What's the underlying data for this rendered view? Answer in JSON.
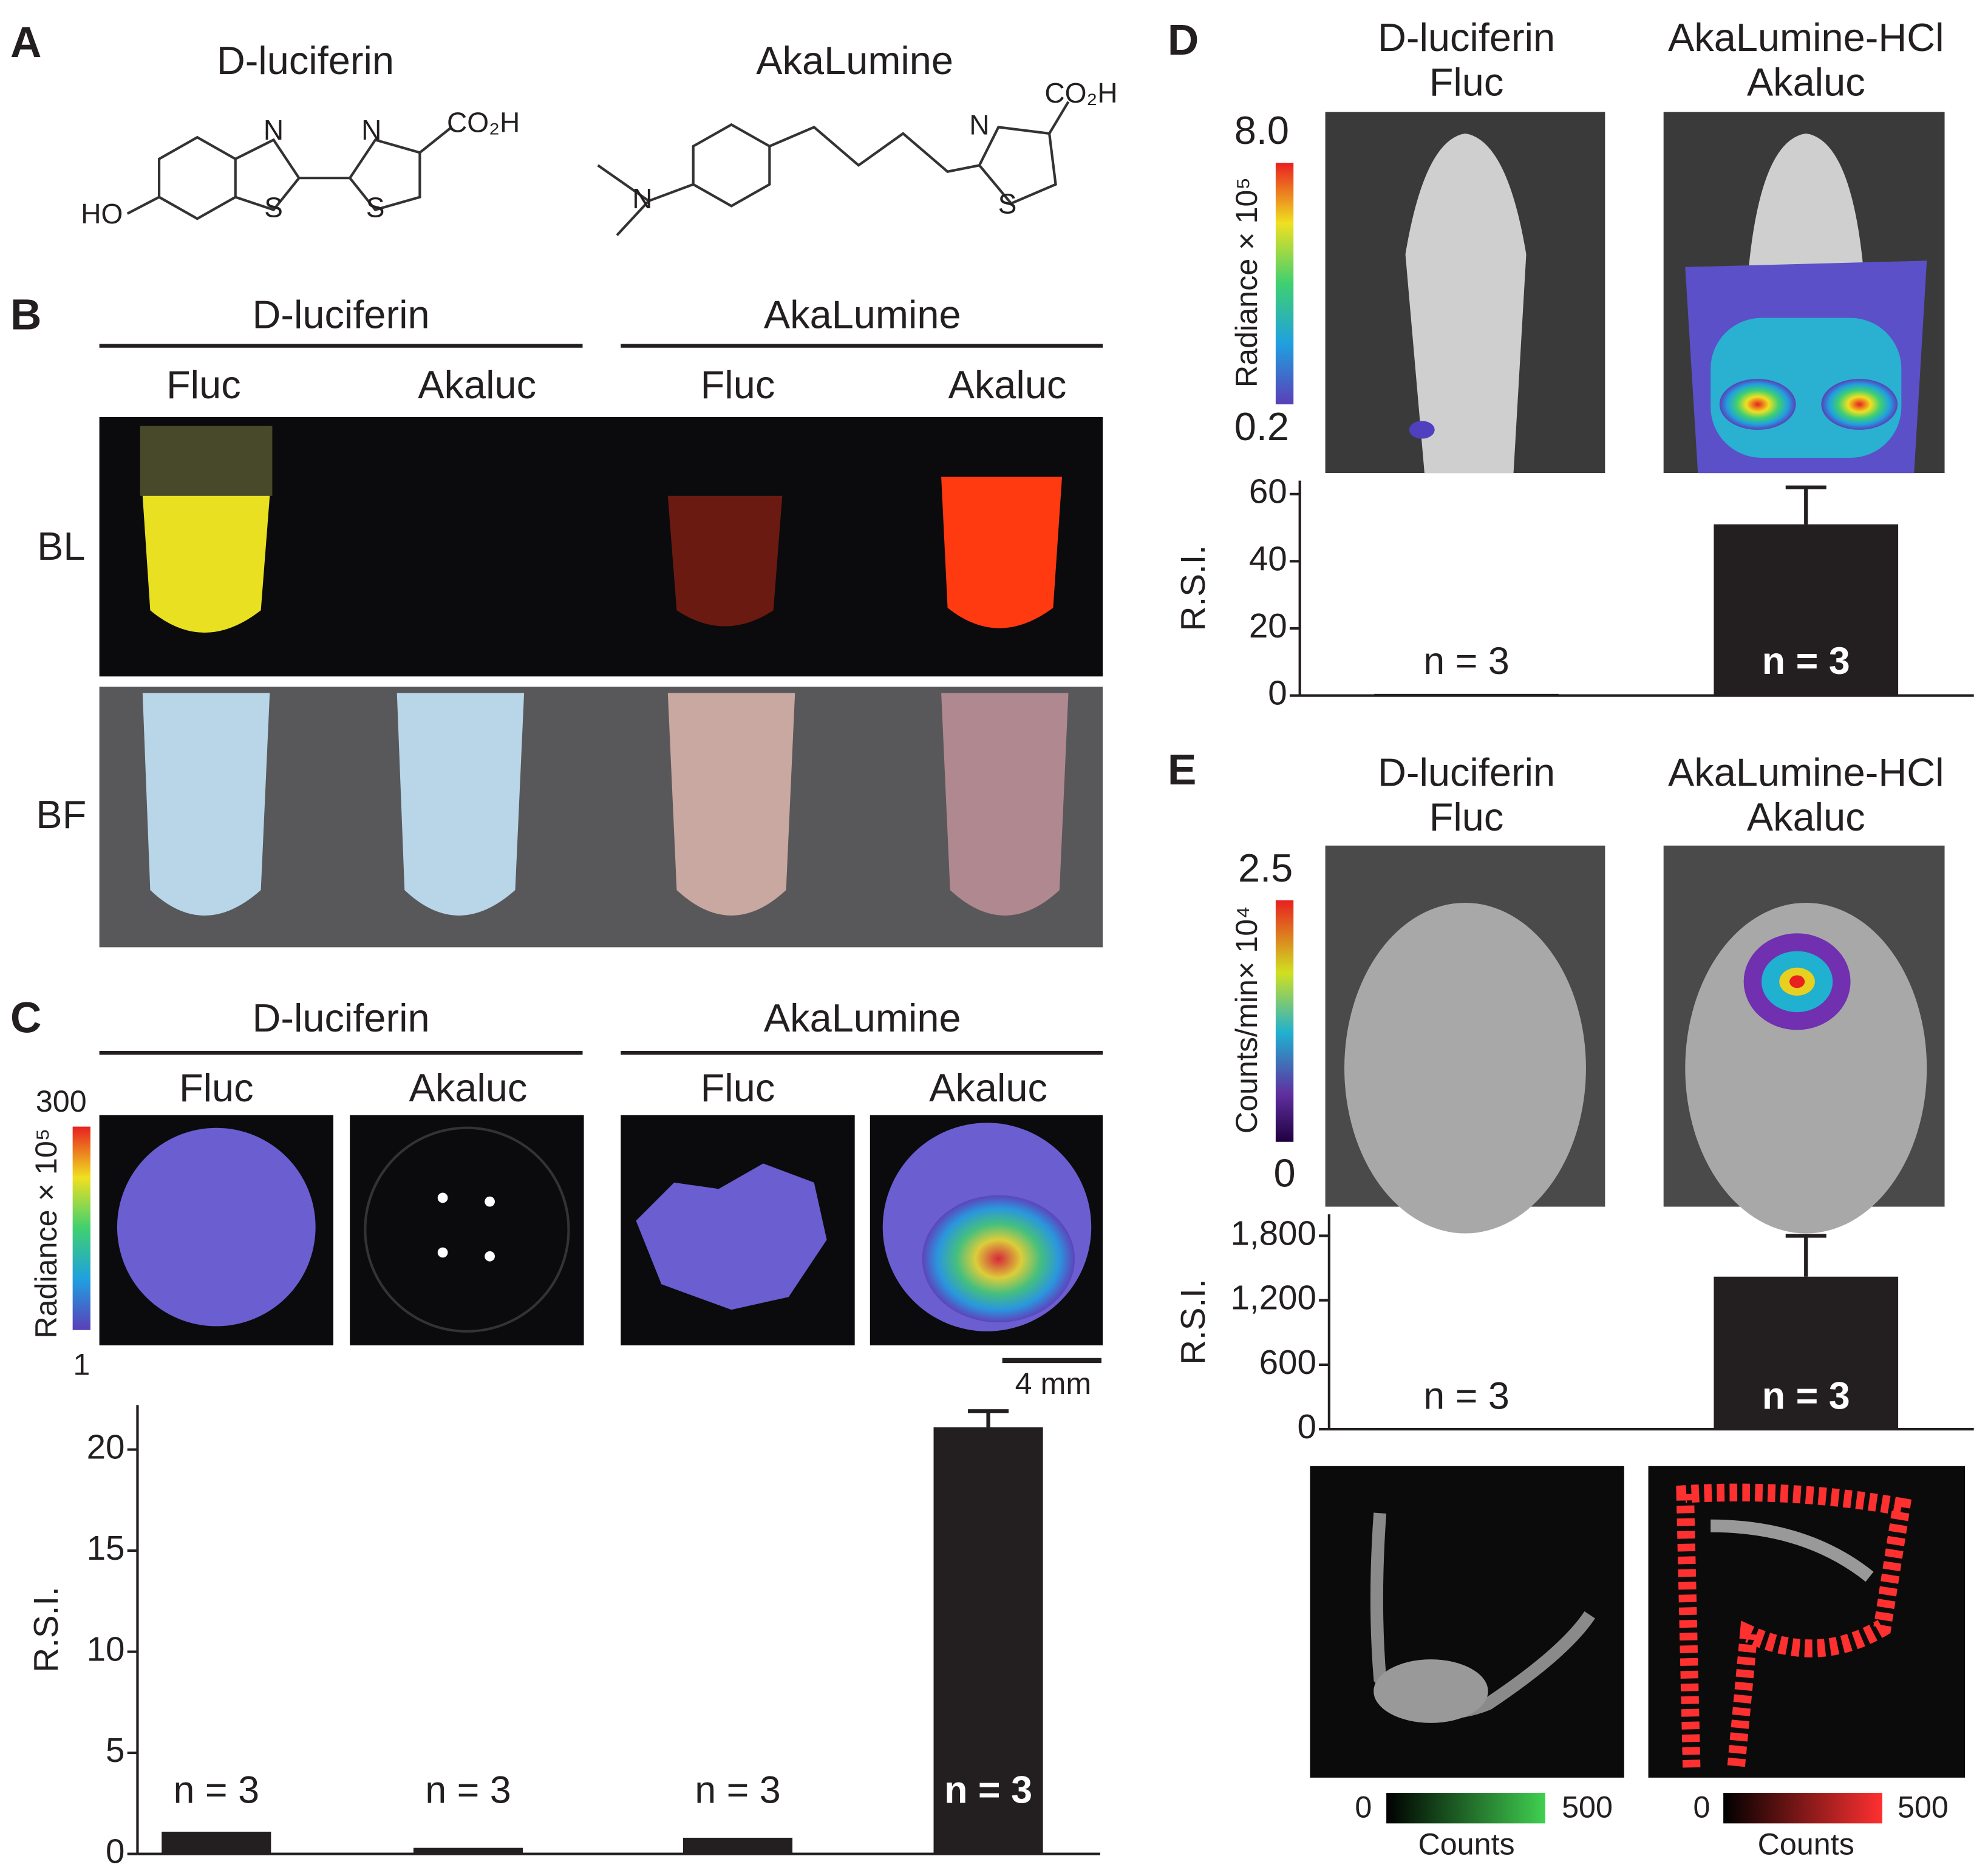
{
  "panel_labels": [
    "A",
    "B",
    "C",
    "D",
    "E"
  ],
  "panel_a": {
    "compounds": [
      "D-luciferin",
      "AkaLumine"
    ],
    "atoms_1": [
      "N",
      "N",
      "CO₂H",
      "HO",
      "S",
      "S"
    ],
    "atoms_2": [
      "N",
      "N",
      "CO₂H",
      "S"
    ]
  },
  "panel_b": {
    "groups": [
      "D-luciferin",
      "AkaLumine"
    ],
    "columns": [
      "Fluc",
      "Akaluc",
      "Fluc",
      "Akaluc"
    ],
    "rows": [
      "BL",
      "BF"
    ]
  },
  "panel_c": {
    "groups": [
      "D-luciferin",
      "AkaLumine"
    ],
    "columns": [
      "Fluc",
      "Akaluc",
      "Fluc",
      "Akaluc"
    ],
    "colorbar": {
      "label": "Radiance × 10⁵",
      "max": "300",
      "min": "1"
    },
    "scale_bar": "4 mm"
  },
  "panel_d": {
    "columns": [
      {
        "line1": "D-luciferin",
        "line2": "Fluc"
      },
      {
        "line1": "AkaLumine-HCl",
        "line2": "Akaluc"
      }
    ],
    "colorbar": {
      "label": "Radiance × 10⁵",
      "max": "8.0",
      "min": "0.2"
    }
  },
  "panel_e": {
    "columns": [
      {
        "line1": "D-luciferin",
        "line2": "Fluc"
      },
      {
        "line1": "AkaLumine-HCl",
        "line2": "Akaluc"
      }
    ],
    "colorbar": {
      "label": "Counts/min× 10⁴",
      "max": "2.5",
      "min": "0"
    },
    "count_bars": [
      {
        "min": "0",
        "max": "500",
        "label": "Counts"
      },
      {
        "min": "0",
        "max": "500",
        "label": "Counts"
      }
    ]
  },
  "chart_data": [
    {
      "type": "bar",
      "ylabel": "R.S.I.",
      "categories": [
        null,
        null,
        null,
        null
      ],
      "values": [
        1.1,
        0.3,
        0.8,
        21.1
      ],
      "errors": [
        null,
        null,
        null,
        0.8
      ],
      "annotations": [
        "n = 3",
        "n = 3",
        "n = 3",
        "n = 3"
      ],
      "color": "#231f20",
      "ylim": [
        0,
        22.2
      ],
      "yticks": [
        0,
        5,
        10,
        15,
        20
      ]
    },
    {
      "type": "bar",
      "ylabel": "R.S.I.",
      "categories": [
        null,
        null
      ],
      "values": [
        0.5,
        51
      ],
      "errors": [
        null,
        11
      ],
      "annotations": [
        "n = 3",
        "n = 3"
      ],
      "color": "#231f20",
      "ylim": [
        0,
        64
      ],
      "yticks": [
        0,
        20,
        40,
        60
      ]
    },
    {
      "type": "bar",
      "ylabel": "R.S.I.",
      "categories": [
        null,
        null
      ],
      "values": [
        5,
        1420
      ],
      "errors": [
        null,
        380
      ],
      "annotations": [
        "n = 3",
        "n = 3"
      ],
      "color": "#231f20",
      "ylim": [
        0,
        2000
      ],
      "yticks": [
        0,
        600,
        {
          "value": 1200,
          "label": "1,200"
        },
        {
          "value": 1800,
          "label": "1,800"
        }
      ]
    }
  ]
}
